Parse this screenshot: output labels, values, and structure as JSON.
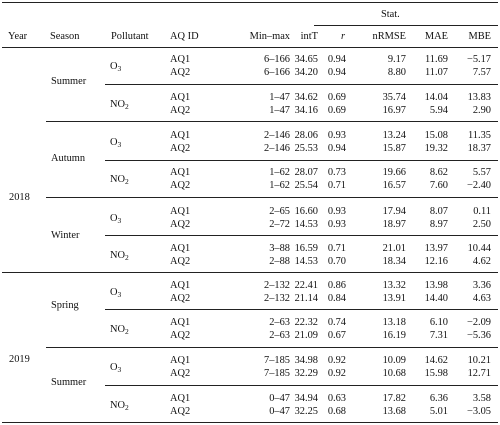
{
  "header": {
    "group": "Stat.",
    "year": "Year",
    "season": "Season",
    "pollutant": "Pollutant",
    "aq_id": "AQ ID",
    "minmax": "Min–max",
    "intt": "intT",
    "r": "r",
    "nrmse": "nRMSE",
    "mae": "MAE",
    "mbe": "MBE"
  },
  "years": [
    "2018",
    "2019"
  ],
  "seasons": [
    "Summer",
    "Autumn",
    "Winter",
    "Spring",
    "Summer"
  ],
  "pollutant_labels": {
    "o3_base": "O",
    "o3_sub": "3",
    "no2_base": "NO",
    "no2_sub": "2"
  },
  "pollutant_order": [
    "o3",
    "no2",
    "o3",
    "no2",
    "o3",
    "no2",
    "o3",
    "no2",
    "o3",
    "no2"
  ],
  "rows": [
    {
      "aq": "AQ1",
      "minmax": "6–166",
      "intT": "34.65",
      "r": "0.94",
      "nrmse": "9.17",
      "mae": "11.69",
      "mbe": "−5.17"
    },
    {
      "aq": "AQ2",
      "minmax": "6–166",
      "intT": "34.20",
      "r": "0.94",
      "nrmse": "8.80",
      "mae": "11.07",
      "mbe": "7.57"
    },
    {
      "aq": "AQ1",
      "minmax": "1–47",
      "intT": "34.62",
      "r": "0.69",
      "nrmse": "35.74",
      "mae": "14.04",
      "mbe": "13.83"
    },
    {
      "aq": "AQ2",
      "minmax": "1–47",
      "intT": "34.16",
      "r": "0.69",
      "nrmse": "16.97",
      "mae": "5.94",
      "mbe": "2.90"
    },
    {
      "aq": "AQ1",
      "minmax": "2–146",
      "intT": "28.06",
      "r": "0.93",
      "nrmse": "13.24",
      "mae": "15.08",
      "mbe": "11.35"
    },
    {
      "aq": "AQ2",
      "minmax": "2–146",
      "intT": "25.53",
      "r": "0.94",
      "nrmse": "15.87",
      "mae": "19.32",
      "mbe": "18.37"
    },
    {
      "aq": "AQ1",
      "minmax": "1–62",
      "intT": "28.07",
      "r": "0.73",
      "nrmse": "19.66",
      "mae": "8.62",
      "mbe": "5.57"
    },
    {
      "aq": "AQ2",
      "minmax": "1–62",
      "intT": "25.54",
      "r": "0.71",
      "nrmse": "16.57",
      "mae": "7.60",
      "mbe": "−2.40"
    },
    {
      "aq": "AQ1",
      "minmax": "2–65",
      "intT": "16.60",
      "r": "0.93",
      "nrmse": "17.94",
      "mae": "8.07",
      "mbe": "0.11"
    },
    {
      "aq": "AQ2",
      "minmax": "2–72",
      "intT": "14.53",
      "r": "0.93",
      "nrmse": "18.97",
      "mae": "8.97",
      "mbe": "2.50"
    },
    {
      "aq": "AQ1",
      "minmax": "3–88",
      "intT": "16.59",
      "r": "0.71",
      "nrmse": "21.01",
      "mae": "13.97",
      "mbe": "10.44"
    },
    {
      "aq": "AQ2",
      "minmax": "2–88",
      "intT": "14.53",
      "r": "0.70",
      "nrmse": "18.34",
      "mae": "12.16",
      "mbe": "4.62"
    },
    {
      "aq": "AQ1",
      "minmax": "2–132",
      "intT": "22.41",
      "r": "0.86",
      "nrmse": "13.32",
      "mae": "13.98",
      "mbe": "3.36"
    },
    {
      "aq": "AQ2",
      "minmax": "2–132",
      "intT": "21.14",
      "r": "0.84",
      "nrmse": "13.91",
      "mae": "14.40",
      "mbe": "4.63"
    },
    {
      "aq": "AQ1",
      "minmax": "2–63",
      "intT": "22.32",
      "r": "0.74",
      "nrmse": "13.18",
      "mae": "6.10",
      "mbe": "−2.09"
    },
    {
      "aq": "AQ2",
      "minmax": "2–63",
      "intT": "21.09",
      "r": "0.67",
      "nrmse": "16.19",
      "mae": "7.31",
      "mbe": "−5.36"
    },
    {
      "aq": "AQ1",
      "minmax": "7–185",
      "intT": "34.98",
      "r": "0.92",
      "nrmse": "10.09",
      "mae": "14.62",
      "mbe": "10.21"
    },
    {
      "aq": "AQ2",
      "minmax": "7–185",
      "intT": "32.29",
      "r": "0.92",
      "nrmse": "10.68",
      "mae": "15.98",
      "mbe": "12.71"
    },
    {
      "aq": "AQ1",
      "minmax": "0–47",
      "intT": "34.94",
      "r": "0.63",
      "nrmse": "17.82",
      "mae": "6.36",
      "mbe": "3.58"
    },
    {
      "aq": "AQ2",
      "minmax": "0–47",
      "intT": "32.25",
      "r": "0.68",
      "nrmse": "13.68",
      "mae": "5.01",
      "mbe": "−3.05"
    }
  ]
}
